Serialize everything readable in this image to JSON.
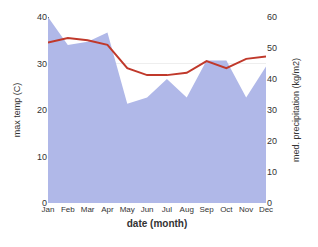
{
  "chart_data": {
    "type": "line",
    "xlabel": "date (month)",
    "ylabel": "max temp (C)",
    "y2label": "med. precipitation (kg/m2)",
    "categories": [
      "Jan",
      "Feb",
      "Mar",
      "Apr",
      "May",
      "Jun",
      "Jul",
      "Aug",
      "Sep",
      "Oct",
      "Nov",
      "Dec"
    ],
    "series": [
      {
        "type": "area",
        "axis": "y2",
        "color": "#b0b8e8",
        "values": [
          60,
          51,
          52,
          55,
          32,
          34,
          40,
          34,
          46,
          46,
          34,
          44
        ]
      },
      {
        "type": "line",
        "color": "#c0392b",
        "values": [
          34.5,
          35.5,
          35.0,
          34.0,
          29.0,
          27.5,
          27.5,
          28.0,
          30.5,
          29.0,
          31.0,
          31.5
        ]
      }
    ],
    "ylim": [
      0,
      40
    ],
    "yticks": [
      0,
      10,
      20,
      30,
      40
    ],
    "y2lim": [
      0,
      60
    ],
    "y2ticks": [
      0,
      10,
      20,
      30,
      40,
      50,
      60
    ],
    "grid": true
  }
}
